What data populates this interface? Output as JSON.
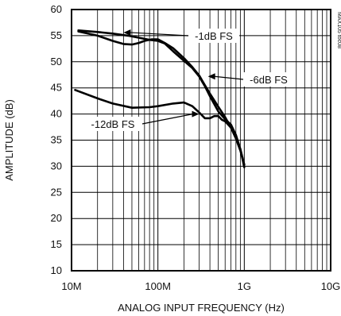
{
  "chart_data": {
    "type": "line",
    "title": "",
    "xlabel": "ANALOG INPUT FREQUENCY (Hz)",
    "ylabel": "AMPLITUDE (dB)",
    "x_scale": "log",
    "xlim": [
      10000000,
      10000000000
    ],
    "ylim": [
      10,
      60
    ],
    "x_ticks": [
      {
        "value": 10000000,
        "label": "10M"
      },
      {
        "value": 100000000,
        "label": "100M"
      },
      {
        "value": 1000000000,
        "label": "1G"
      },
      {
        "value": 10000000000,
        "label": "10G"
      }
    ],
    "y_ticks": [
      {
        "value": 10,
        "label": "10"
      },
      {
        "value": 15,
        "label": "15"
      },
      {
        "value": 20,
        "label": "20"
      },
      {
        "value": 25,
        "label": "25"
      },
      {
        "value": 30,
        "label": "30"
      },
      {
        "value": 35,
        "label": "35"
      },
      {
        "value": 40,
        "label": "40"
      },
      {
        "value": 45,
        "label": "45"
      },
      {
        "value": 50,
        "label": "50"
      },
      {
        "value": 55,
        "label": "55"
      },
      {
        "value": 60,
        "label": "60"
      }
    ],
    "grid": true,
    "document_id": "MAX105 toc08",
    "series": [
      {
        "name": "-1dB FS",
        "color": "#000000",
        "x": [
          12000000,
          20000000,
          30000000,
          45000000,
          60000000,
          80000000,
          100000000,
          120000000,
          150000000,
          200000000,
          250000000,
          300000000,
          350000000,
          400000000,
          500000000,
          600000000,
          700000000,
          800000000,
          900000000,
          1000000000
        ],
        "y": [
          56.0,
          55.7,
          55.4,
          55.0,
          54.6,
          54.2,
          54.0,
          53.5,
          52.0,
          50.2,
          48.8,
          47.2,
          45.3,
          43.4,
          40.5,
          39.0,
          38.0,
          36.0,
          33.2,
          30.3
        ]
      },
      {
        "name": "-6dB FS",
        "color": "#000000",
        "x": [
          12000000,
          20000000,
          30000000,
          40000000,
          50000000,
          60000000,
          70000000,
          85000000,
          100000000,
          120000000,
          150000000,
          200000000,
          250000000,
          300000000,
          350000000,
          400000000,
          500000000,
          600000000,
          700000000,
          800000000,
          900000000,
          1000000000
        ],
        "y": [
          55.8,
          55.0,
          54.0,
          53.4,
          53.3,
          53.6,
          54.0,
          54.3,
          54.3,
          53.6,
          52.6,
          50.7,
          49.0,
          47.4,
          45.5,
          43.9,
          41.4,
          39.4,
          37.4,
          35.3,
          33.0,
          30.3
        ]
      },
      {
        "name": "-12dB FS",
        "color": "#000000",
        "x": [
          11000000,
          20000000,
          30000000,
          50000000,
          80000000,
          100000000,
          150000000,
          200000000,
          250000000,
          300000000,
          350000000,
          400000000,
          450000000,
          500000000,
          550000000,
          600000000,
          700000000,
          800000000,
          900000000,
          1000000000
        ],
        "y": [
          44.6,
          43.0,
          42.0,
          41.2,
          41.3,
          41.5,
          42.0,
          42.2,
          41.5,
          40.3,
          39.2,
          39.2,
          39.6,
          39.6,
          38.9,
          38.6,
          37.4,
          35.8,
          33.3,
          29.8
        ]
      }
    ],
    "annotations": [
      {
        "text": "-1dB FS",
        "series": "-1dB FS",
        "arrow_to": {
          "x": 40000000,
          "y": 55.6
        }
      },
      {
        "text": "-6dB FS",
        "series": "-6dB FS",
        "arrow_to": {
          "x": 380000000,
          "y": 47.2
        }
      },
      {
        "text": "-12dB FS",
        "series": "-12dB FS",
        "arrow_to": {
          "x": 300000000,
          "y": 40.0
        }
      }
    ]
  }
}
